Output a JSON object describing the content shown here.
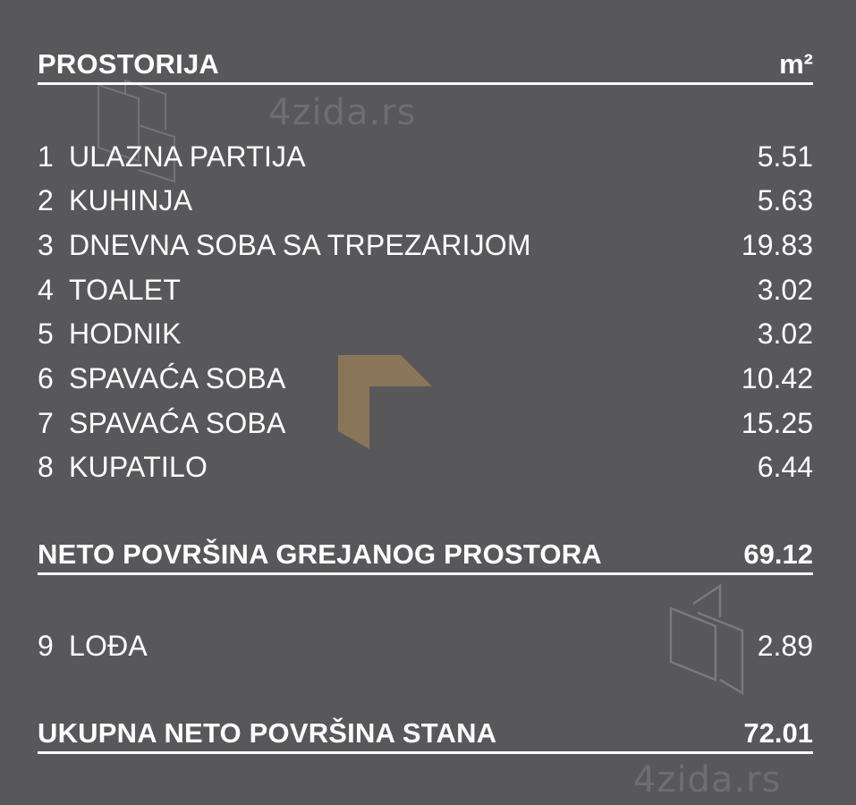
{
  "header": {
    "title": "PROSTORIJA",
    "unit": "m²"
  },
  "rooms": [
    {
      "num": "1",
      "name": "ULAZNA PARTIJA",
      "area": "5.51"
    },
    {
      "num": "2",
      "name": "KUHINJA",
      "area": "5.63"
    },
    {
      "num": "3",
      "name": "DNEVNA SOBA SA TRPEZARIJOM",
      "area": "19.83"
    },
    {
      "num": "4",
      "name": "TOALET",
      "area": "3.02"
    },
    {
      "num": "5",
      "name": "HODNIK",
      "area": "3.02"
    },
    {
      "num": "6",
      "name": "SPAVAĆA SOBA",
      "area": "10.42"
    },
    {
      "num": "7",
      "name": "SPAVAĆA SOBA",
      "area": "15.25"
    },
    {
      "num": "8",
      "name": "KUPATILO",
      "area": "6.44"
    }
  ],
  "net_heated": {
    "label": "NETO POVRŠINA GREJANOG PROSTORA",
    "area": "69.12"
  },
  "loggia": {
    "num": "9",
    "name": "LOĐA",
    "area": "2.89"
  },
  "total": {
    "label": "UKUPNA NETO POVRŠINA STANA",
    "area": "72.01"
  },
  "watermarks": {
    "site": "4zida.rs"
  },
  "colors": {
    "background": "#58585a",
    "text": "#ffffff",
    "accent_logo": "#8a7558"
  }
}
